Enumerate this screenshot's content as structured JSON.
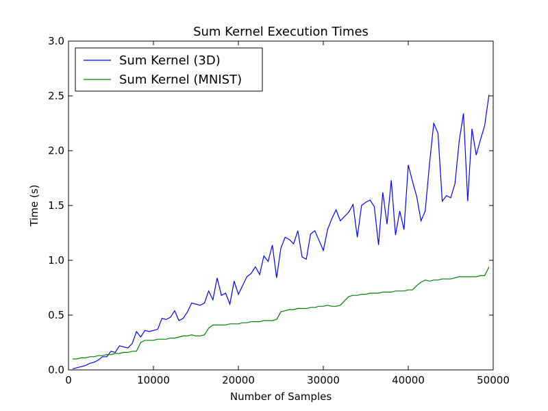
{
  "chart_data": {
    "type": "line",
    "title": "Sum Kernel Execution Times",
    "xlabel": "Number of Samples",
    "ylabel": "Time (s)",
    "xlim": [
      0,
      50000
    ],
    "ylim": [
      0,
      3.0
    ],
    "xticks": [
      0,
      10000,
      20000,
      30000,
      40000,
      50000
    ],
    "xtick_labels": [
      "0",
      "10000",
      "20000",
      "30000",
      "40000",
      "50000"
    ],
    "yticks": [
      0,
      0.5,
      1.0,
      1.5,
      2.0,
      2.5,
      3.0
    ],
    "ytick_labels": [
      "0.0",
      "0.5",
      "1.0",
      "1.5",
      "2.0",
      "2.5",
      "3.0"
    ],
    "grid": false,
    "legend_position": "top-left",
    "series": [
      {
        "name": "Sum Kernel (3D)",
        "color": "#0000ff",
        "x": [
          500,
          1000,
          1500,
          2000,
          2500,
          3000,
          3500,
          4000,
          4500,
          5000,
          5500,
          6000,
          6500,
          7000,
          7500,
          8000,
          8500,
          9000,
          9500,
          10000,
          10500,
          11000,
          11500,
          12000,
          12500,
          13000,
          13500,
          14000,
          14500,
          15000,
          15500,
          16000,
          16500,
          17000,
          17500,
          18000,
          18500,
          19000,
          19500,
          20000,
          20500,
          21000,
          21500,
          22000,
          22500,
          23000,
          23500,
          24000,
          24500,
          25000,
          25500,
          26000,
          26500,
          27000,
          27500,
          28000,
          28500,
          29000,
          29500,
          30000,
          30500,
          31000,
          31500,
          32000,
          32500,
          33000,
          33500,
          34000,
          34500,
          35000,
          35500,
          36000,
          36500,
          37000,
          37500,
          38000,
          38500,
          39000,
          39500,
          40000,
          40500,
          41000,
          41500,
          42000,
          42500,
          43000,
          43500,
          44000,
          44500,
          45000,
          45500,
          46000,
          46500,
          47000,
          47500,
          48000,
          48500,
          49000,
          49500
        ],
        "values": [
          0.01,
          0.02,
          0.03,
          0.04,
          0.06,
          0.07,
          0.09,
          0.12,
          0.12,
          0.17,
          0.16,
          0.22,
          0.21,
          0.2,
          0.24,
          0.35,
          0.3,
          0.36,
          0.35,
          0.36,
          0.37,
          0.47,
          0.46,
          0.48,
          0.54,
          0.45,
          0.47,
          0.53,
          0.61,
          0.6,
          0.59,
          0.61,
          0.72,
          0.64,
          0.84,
          0.68,
          0.7,
          0.6,
          0.81,
          0.69,
          0.77,
          0.85,
          0.88,
          0.94,
          0.87,
          1.04,
          0.99,
          1.14,
          0.84,
          1.11,
          1.21,
          1.19,
          1.15,
          1.27,
          1.03,
          1.01,
          1.24,
          1.27,
          1.18,
          1.09,
          1.28,
          1.38,
          1.46,
          1.36,
          1.4,
          1.44,
          1.51,
          1.21,
          1.5,
          1.53,
          1.55,
          1.49,
          1.14,
          1.62,
          1.33,
          1.73,
          1.23,
          1.45,
          1.28,
          1.87,
          1.72,
          1.58,
          1.36,
          1.45,
          1.88,
          2.25,
          2.16,
          1.54,
          1.59,
          1.57,
          1.7,
          2.09,
          2.34,
          1.54,
          2.2,
          1.96,
          2.1,
          2.23,
          2.51
        ]
      },
      {
        "name": "Sum Kernel (MNIST)",
        "color": "#008000",
        "x": [
          500,
          1000,
          1500,
          2000,
          2500,
          3000,
          3500,
          4000,
          4500,
          5000,
          5500,
          6000,
          6500,
          7000,
          7500,
          8000,
          8500,
          9000,
          9500,
          10000,
          10500,
          11000,
          11500,
          12000,
          12500,
          13000,
          13500,
          14000,
          14500,
          15000,
          15500,
          16000,
          16500,
          17000,
          17500,
          18000,
          18500,
          19000,
          19500,
          20000,
          20500,
          21000,
          21500,
          22000,
          22500,
          23000,
          23500,
          24000,
          24500,
          25000,
          25500,
          26000,
          26500,
          27000,
          27500,
          28000,
          28500,
          29000,
          29500,
          30000,
          30500,
          31000,
          31500,
          32000,
          32500,
          33000,
          33500,
          34000,
          34500,
          35000,
          35500,
          36000,
          36500,
          37000,
          37500,
          38000,
          38500,
          39000,
          39500,
          40000,
          40500,
          41000,
          41500,
          42000,
          42500,
          43000,
          43500,
          44000,
          44500,
          45000,
          45500,
          46000,
          46500,
          47000,
          47500,
          48000,
          48500,
          49000,
          49500
        ],
        "values": [
          0.1,
          0.1,
          0.11,
          0.11,
          0.12,
          0.12,
          0.13,
          0.13,
          0.14,
          0.14,
          0.15,
          0.15,
          0.16,
          0.16,
          0.17,
          0.17,
          0.25,
          0.27,
          0.27,
          0.27,
          0.28,
          0.28,
          0.28,
          0.29,
          0.29,
          0.3,
          0.31,
          0.31,
          0.32,
          0.31,
          0.31,
          0.32,
          0.38,
          0.41,
          0.41,
          0.41,
          0.41,
          0.42,
          0.42,
          0.42,
          0.43,
          0.43,
          0.44,
          0.44,
          0.44,
          0.45,
          0.45,
          0.45,
          0.46,
          0.53,
          0.54,
          0.55,
          0.55,
          0.56,
          0.56,
          0.56,
          0.57,
          0.57,
          0.58,
          0.58,
          0.59,
          0.58,
          0.58,
          0.59,
          0.63,
          0.67,
          0.68,
          0.68,
          0.69,
          0.69,
          0.7,
          0.7,
          0.7,
          0.71,
          0.71,
          0.71,
          0.72,
          0.72,
          0.72,
          0.73,
          0.73,
          0.77,
          0.8,
          0.82,
          0.81,
          0.82,
          0.82,
          0.83,
          0.83,
          0.83,
          0.84,
          0.85,
          0.85,
          0.85,
          0.85,
          0.85,
          0.86,
          0.86,
          0.94
        ]
      }
    ]
  }
}
